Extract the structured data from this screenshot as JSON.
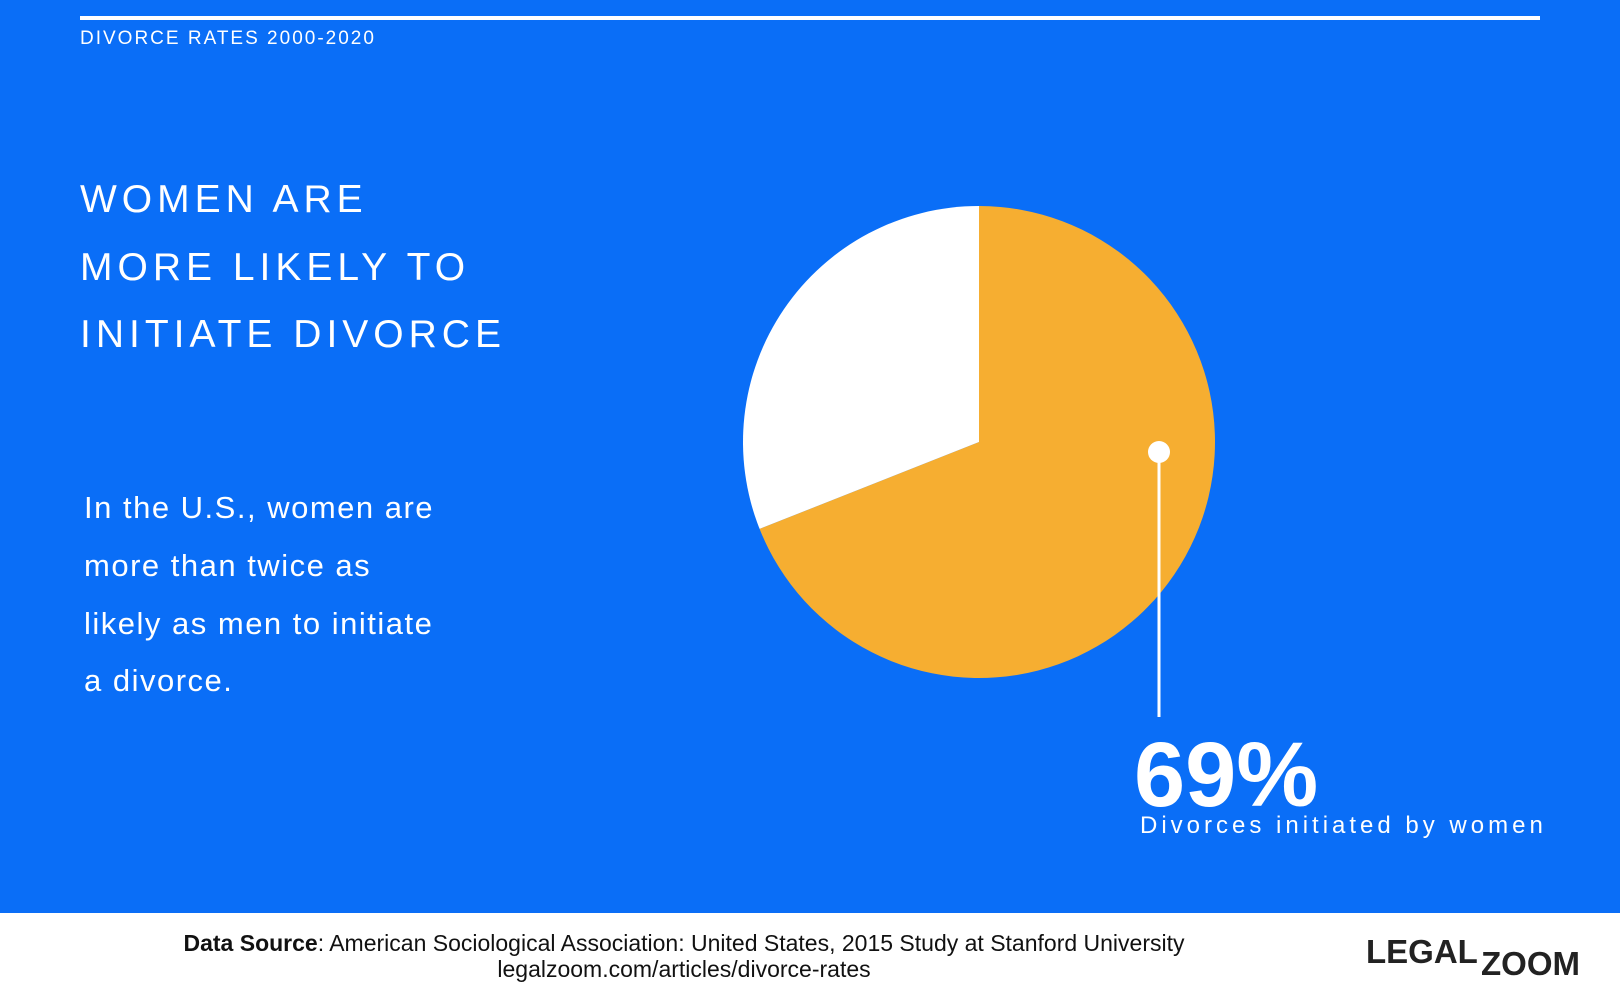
{
  "header": {
    "kicker": "DIVORCE RATES 2000-2020",
    "headline": [
      "WOMEN ARE",
      "MORE LIKELY TO",
      "INITIATE DIVORCE"
    ],
    "body": [
      "In the U.S., women are",
      "more than twice as",
      "likely as men to initiate",
      "a divorce."
    ]
  },
  "chart_data": {
    "type": "pie",
    "categories": [
      "Divorces initiated by women",
      null
    ],
    "values": [
      69,
      31
    ],
    "value_labels": [
      "69%",
      null
    ],
    "colors": [
      "#F6AE31",
      "#FFFFFF"
    ]
  },
  "footer": {
    "source_label": "Data Source",
    "source": ": American Sociological Association: United States, 2015 Study at Stanford University",
    "url": "legalzoom.com/articles/divorce-rates",
    "logo": [
      "LEGAL",
      "ZOOM"
    ]
  }
}
